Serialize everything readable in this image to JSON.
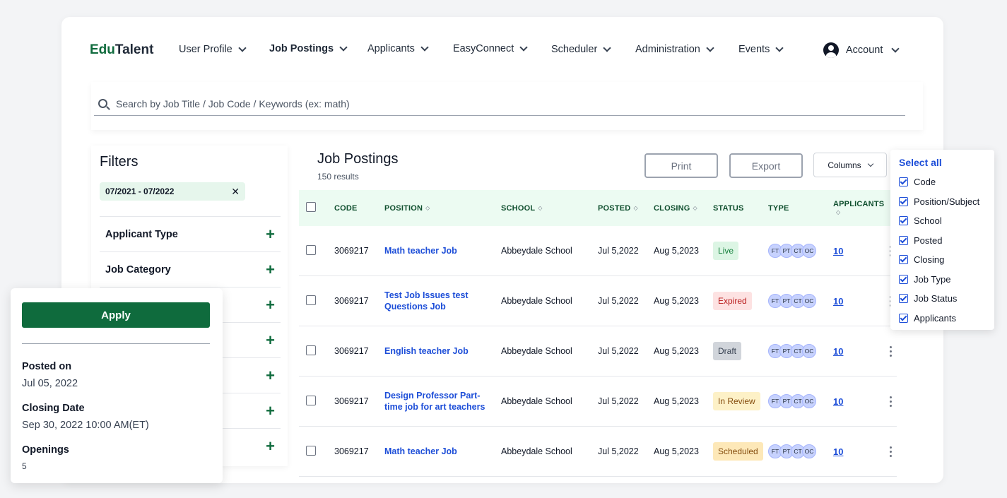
{
  "brand": {
    "part1": "Edu",
    "part2": "Talent"
  },
  "nav": {
    "items": [
      "User Profile",
      "Job Postings",
      "Applicants",
      "EasyConnect",
      "Scheduler",
      "Administration",
      "Events"
    ],
    "account": "Account"
  },
  "search": {
    "placeholder": "Search by Job Title / Job Code / Keywords (ex: math)"
  },
  "filters": {
    "title": "Filters",
    "chip": "07/2021 - 07/2022",
    "chip_remove": "✕",
    "groups": [
      "Applicant Type",
      "Job Category",
      "",
      "",
      "",
      "",
      ""
    ]
  },
  "postings": {
    "title": "Job Postings",
    "count": "150 results",
    "print": "Print",
    "export": "Export",
    "columns": "Columns"
  },
  "table": {
    "headers": {
      "code": "CODE",
      "position": "POSITION",
      "school": "SCHOOL",
      "posted": "POSTED",
      "closing": "CLOSING",
      "status": "STATUS",
      "type": "TYPE",
      "applicants": "APPLICANTS"
    },
    "type_codes": [
      "FT",
      "PT",
      "CT",
      "OC"
    ],
    "rows": [
      {
        "code": "3069217",
        "position": "Math teacher Job",
        "school": "Abbeydale School",
        "posted": "Jul 5,2022",
        "closing": "Aug 5,2023",
        "status": "Live",
        "applicants": "10"
      },
      {
        "code": "3069217",
        "position": "Test Job Issues test Questions Job",
        "school": "Abbeydale School",
        "posted": "Jul 5,2022",
        "closing": "Aug 5,2023",
        "status": "Expired",
        "applicants": "10"
      },
      {
        "code": "3069217",
        "position": "English teacher Job",
        "school": "Abbeydale School",
        "posted": "Jul 5,2022",
        "closing": "Aug 5,2023",
        "status": "Draft",
        "applicants": "10"
      },
      {
        "code": "3069217",
        "position": "Design Professor Part-time job for art teachers",
        "school": "Abbeydale School",
        "posted": "Jul 5,2022",
        "closing": "Aug 5,2023",
        "status": "In Review",
        "applicants": "10"
      },
      {
        "code": "3069217",
        "position": "Math teacher Job",
        "school": "Abbeydale School",
        "posted": "Jul 5,2022",
        "closing": "Aug 5,2023",
        "status": "Scheduled",
        "applicants": "10"
      }
    ]
  },
  "columns_panel": {
    "select_all": "Select all",
    "options": [
      "Code",
      "Position/Subject",
      "School",
      "Posted",
      "Closing",
      "Job Type",
      "Job Status",
      "Applicants"
    ]
  },
  "detail": {
    "apply": "Apply",
    "posted_label": "Posted on",
    "posted_value": "Jul 05, 2022",
    "closing_label": "Closing Date",
    "closing_value": "Sep 30, 2022 10:00 AM(ET)",
    "openings_label": "Openings",
    "openings_value": "5"
  },
  "colors": {
    "brand_green": "#0f6b3d",
    "link_blue": "#1d4ed8",
    "header_bg": "#ecfbf2"
  }
}
